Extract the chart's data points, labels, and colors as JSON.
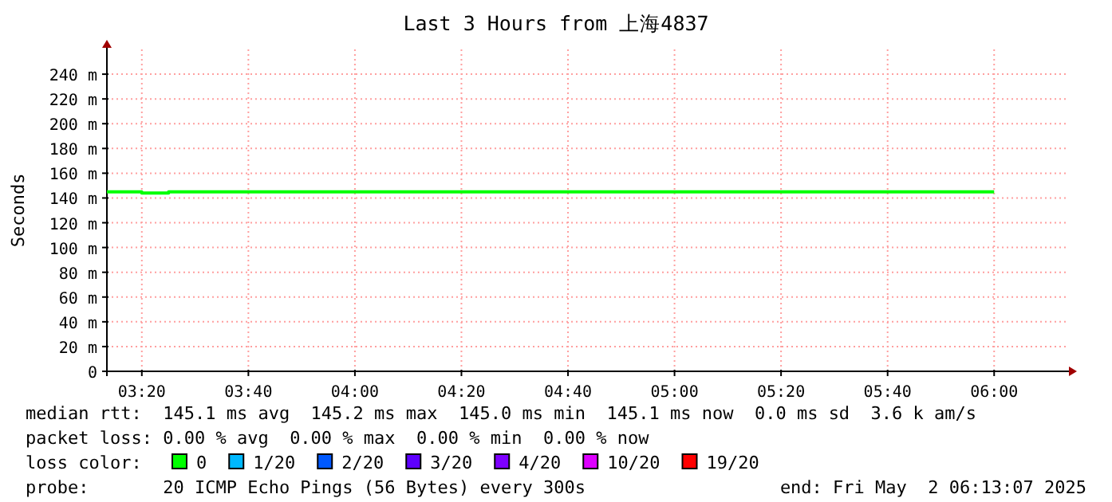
{
  "chart_data": {
    "type": "step",
    "title": "Last 3 Hours from 上海4837",
    "ylabel": "Seconds",
    "x": [
      3.224,
      3.333,
      3.417,
      6.0
    ],
    "series": [
      {
        "name": "0",
        "color": "#00ff00",
        "values": [
          145,
          144,
          145,
          145
        ]
      },
      {
        "name": "1/20",
        "color": "#00b8ff",
        "values": [
          null,
          null,
          null,
          null
        ]
      },
      {
        "name": "2/20",
        "color": "#0059ff",
        "values": [
          null,
          null,
          null,
          null
        ]
      },
      {
        "name": "3/20",
        "color": "#5e00ff",
        "values": [
          null,
          null,
          null,
          null
        ]
      },
      {
        "name": "4/20",
        "color": "#7e00ff",
        "values": [
          null,
          null,
          null,
          null
        ]
      },
      {
        "name": "10/20",
        "color": "#dd00ff",
        "values": [
          null,
          null,
          null,
          null
        ]
      },
      {
        "name": "19/20",
        "color": "#ff0000",
        "values": [
          null,
          null,
          null,
          null
        ]
      }
    ],
    "legend_title": "loss color:",
    "legend": "bottom",
    "grid": true,
    "xlim": [
      3.224,
      6.229
    ],
    "xticks": [
      {
        "value": 3.3333,
        "label": "03:20"
      },
      {
        "value": 3.6667,
        "label": "03:40"
      },
      {
        "value": 4.0,
        "label": "04:00"
      },
      {
        "value": 4.3333,
        "label": "04:20"
      },
      {
        "value": 4.6667,
        "label": "04:40"
      },
      {
        "value": 5.0,
        "label": "05:00"
      },
      {
        "value": 5.3333,
        "label": "05:20"
      },
      {
        "value": 5.6667,
        "label": "05:40"
      },
      {
        "value": 6.0,
        "label": "06:00"
      }
    ],
    "ylim": [
      0,
      260
    ],
    "yticks": [
      0,
      {
        "value": 20,
        "label": "20 m"
      },
      {
        "value": 40,
        "label": "40 m"
      },
      {
        "value": 60,
        "label": "60 m"
      },
      {
        "value": 80,
        "label": "80 m"
      },
      {
        "value": 100,
        "label": "100 m"
      },
      {
        "value": 120,
        "label": "120 m"
      },
      {
        "value": 140,
        "label": "140 m"
      },
      {
        "value": 160,
        "label": "160 m"
      },
      {
        "value": 180,
        "label": "180 m"
      },
      {
        "value": 200,
        "label": "200 m"
      },
      {
        "value": 220,
        "label": "220 m"
      },
      {
        "value": 240,
        "label": "240 m"
      }
    ],
    "annotations": [
      "median rtt:  145.1 ms avg  145.2 ms max  145.0 ms min  145.1 ms now  0.0 ms sd  3.6 k am/s",
      "packet loss: 0.00 % avg  0.00 % max  0.00 % min  0.00 % now",
      "probe:       20 ICMP Echo Pings (56 Bytes) every 300s",
      "end: Fri May  2 06:13:07 2025"
    ]
  }
}
